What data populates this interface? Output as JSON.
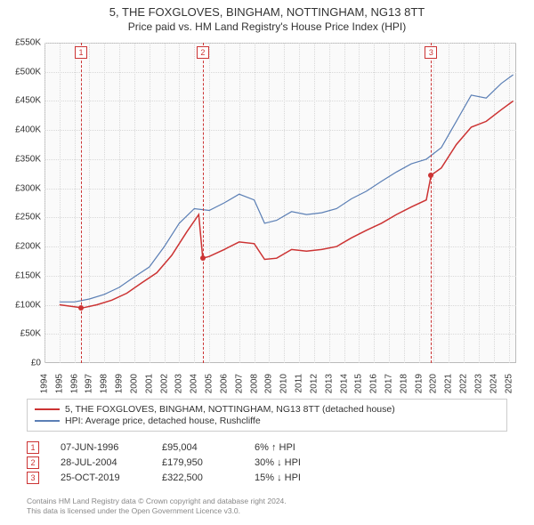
{
  "title": "5, THE FOXGLOVES, BINGHAM, NOTTINGHAM, NG13 8TT",
  "subtitle": "Price paid vs. HM Land Registry's House Price Index (HPI)",
  "chart": {
    "type": "line",
    "background_color": "#fafafa",
    "grid_color": "#d8d8d8",
    "border_color": "#bbbbbb",
    "ylim": [
      0,
      550000
    ],
    "ytick_step": 50000,
    "yticks": [
      "£0",
      "£50K",
      "£100K",
      "£150K",
      "£200K",
      "£250K",
      "£300K",
      "£350K",
      "£400K",
      "£450K",
      "£500K",
      "£550K"
    ],
    "xlim": [
      1994,
      2025.5
    ],
    "xticks": [
      1994,
      1995,
      1996,
      1997,
      1998,
      1999,
      2000,
      2001,
      2002,
      2003,
      2004,
      2005,
      2006,
      2007,
      2008,
      2009,
      2010,
      2011,
      2012,
      2013,
      2014,
      2015,
      2016,
      2017,
      2018,
      2019,
      2020,
      2021,
      2022,
      2023,
      2024,
      2025
    ],
    "series": [
      {
        "name": "price_paid",
        "color": "#cc3333",
        "line_width": 1.5,
        "points": [
          [
            1995.0,
            100000
          ],
          [
            1996.44,
            95004
          ],
          [
            1996.6,
            95000
          ],
          [
            1997.5,
            100000
          ],
          [
            1998.5,
            108000
          ],
          [
            1999.5,
            120000
          ],
          [
            2000.5,
            138000
          ],
          [
            2001.5,
            155000
          ],
          [
            2002.5,
            185000
          ],
          [
            2003.5,
            225000
          ],
          [
            2004.3,
            255000
          ],
          [
            2004.57,
            179950
          ],
          [
            2005.0,
            183000
          ],
          [
            2006.0,
            195000
          ],
          [
            2007.0,
            208000
          ],
          [
            2008.0,
            205000
          ],
          [
            2008.7,
            178000
          ],
          [
            2009.5,
            180000
          ],
          [
            2010.5,
            195000
          ],
          [
            2011.5,
            192000
          ],
          [
            2012.5,
            195000
          ],
          [
            2013.5,
            200000
          ],
          [
            2014.5,
            215000
          ],
          [
            2015.5,
            228000
          ],
          [
            2016.5,
            240000
          ],
          [
            2017.5,
            255000
          ],
          [
            2018.5,
            268000
          ],
          [
            2019.5,
            280000
          ],
          [
            2019.82,
            322500
          ],
          [
            2020.5,
            335000
          ],
          [
            2021.5,
            375000
          ],
          [
            2022.5,
            405000
          ],
          [
            2023.5,
            415000
          ],
          [
            2024.5,
            435000
          ],
          [
            2025.3,
            450000
          ]
        ]
      },
      {
        "name": "hpi",
        "color": "#5b7fb5",
        "line_width": 1.2,
        "points": [
          [
            1995.0,
            105000
          ],
          [
            1996.0,
            105000
          ],
          [
            1997.0,
            110000
          ],
          [
            1998.0,
            118000
          ],
          [
            1999.0,
            130000
          ],
          [
            2000.0,
            148000
          ],
          [
            2001.0,
            165000
          ],
          [
            2002.0,
            200000
          ],
          [
            2003.0,
            240000
          ],
          [
            2004.0,
            265000
          ],
          [
            2005.0,
            262000
          ],
          [
            2006.0,
            275000
          ],
          [
            2007.0,
            290000
          ],
          [
            2008.0,
            280000
          ],
          [
            2008.7,
            240000
          ],
          [
            2009.5,
            245000
          ],
          [
            2010.5,
            260000
          ],
          [
            2011.5,
            255000
          ],
          [
            2012.5,
            258000
          ],
          [
            2013.5,
            265000
          ],
          [
            2014.5,
            282000
          ],
          [
            2015.5,
            295000
          ],
          [
            2016.5,
            312000
          ],
          [
            2017.5,
            328000
          ],
          [
            2018.5,
            342000
          ],
          [
            2019.5,
            350000
          ],
          [
            2020.5,
            370000
          ],
          [
            2021.5,
            415000
          ],
          [
            2022.5,
            460000
          ],
          [
            2023.5,
            455000
          ],
          [
            2024.5,
            480000
          ],
          [
            2025.3,
            495000
          ]
        ]
      }
    ],
    "markers": [
      {
        "n": "1",
        "x": 1996.44,
        "y": 95004
      },
      {
        "n": "2",
        "x": 2004.57,
        "y": 179950
      },
      {
        "n": "3",
        "x": 2019.82,
        "y": 322500
      }
    ],
    "marker_color": "#cc3333"
  },
  "legend": {
    "items": [
      {
        "color": "#cc3333",
        "label": "5, THE FOXGLOVES, BINGHAM, NOTTINGHAM, NG13 8TT (detached house)"
      },
      {
        "color": "#5b7fb5",
        "label": "HPI: Average price, detached house, Rushcliffe"
      }
    ]
  },
  "transactions": [
    {
      "n": "1",
      "date": "07-JUN-1996",
      "price": "£95,004",
      "delta": "6% ↑ HPI"
    },
    {
      "n": "2",
      "date": "28-JUL-2004",
      "price": "£179,950",
      "delta": "30% ↓ HPI"
    },
    {
      "n": "3",
      "date": "25-OCT-2019",
      "price": "£322,500",
      "delta": "15% ↓ HPI"
    }
  ],
  "footer": {
    "line1": "Contains HM Land Registry data © Crown copyright and database right 2024.",
    "line2": "This data is licensed under the Open Government Licence v3.0."
  },
  "typography": {
    "title_fontsize": 13,
    "subtitle_fontsize": 12,
    "axis_fontsize": 10,
    "legend_fontsize": 10.5,
    "table_fontsize": 11,
    "footer_fontsize": 8.5
  }
}
